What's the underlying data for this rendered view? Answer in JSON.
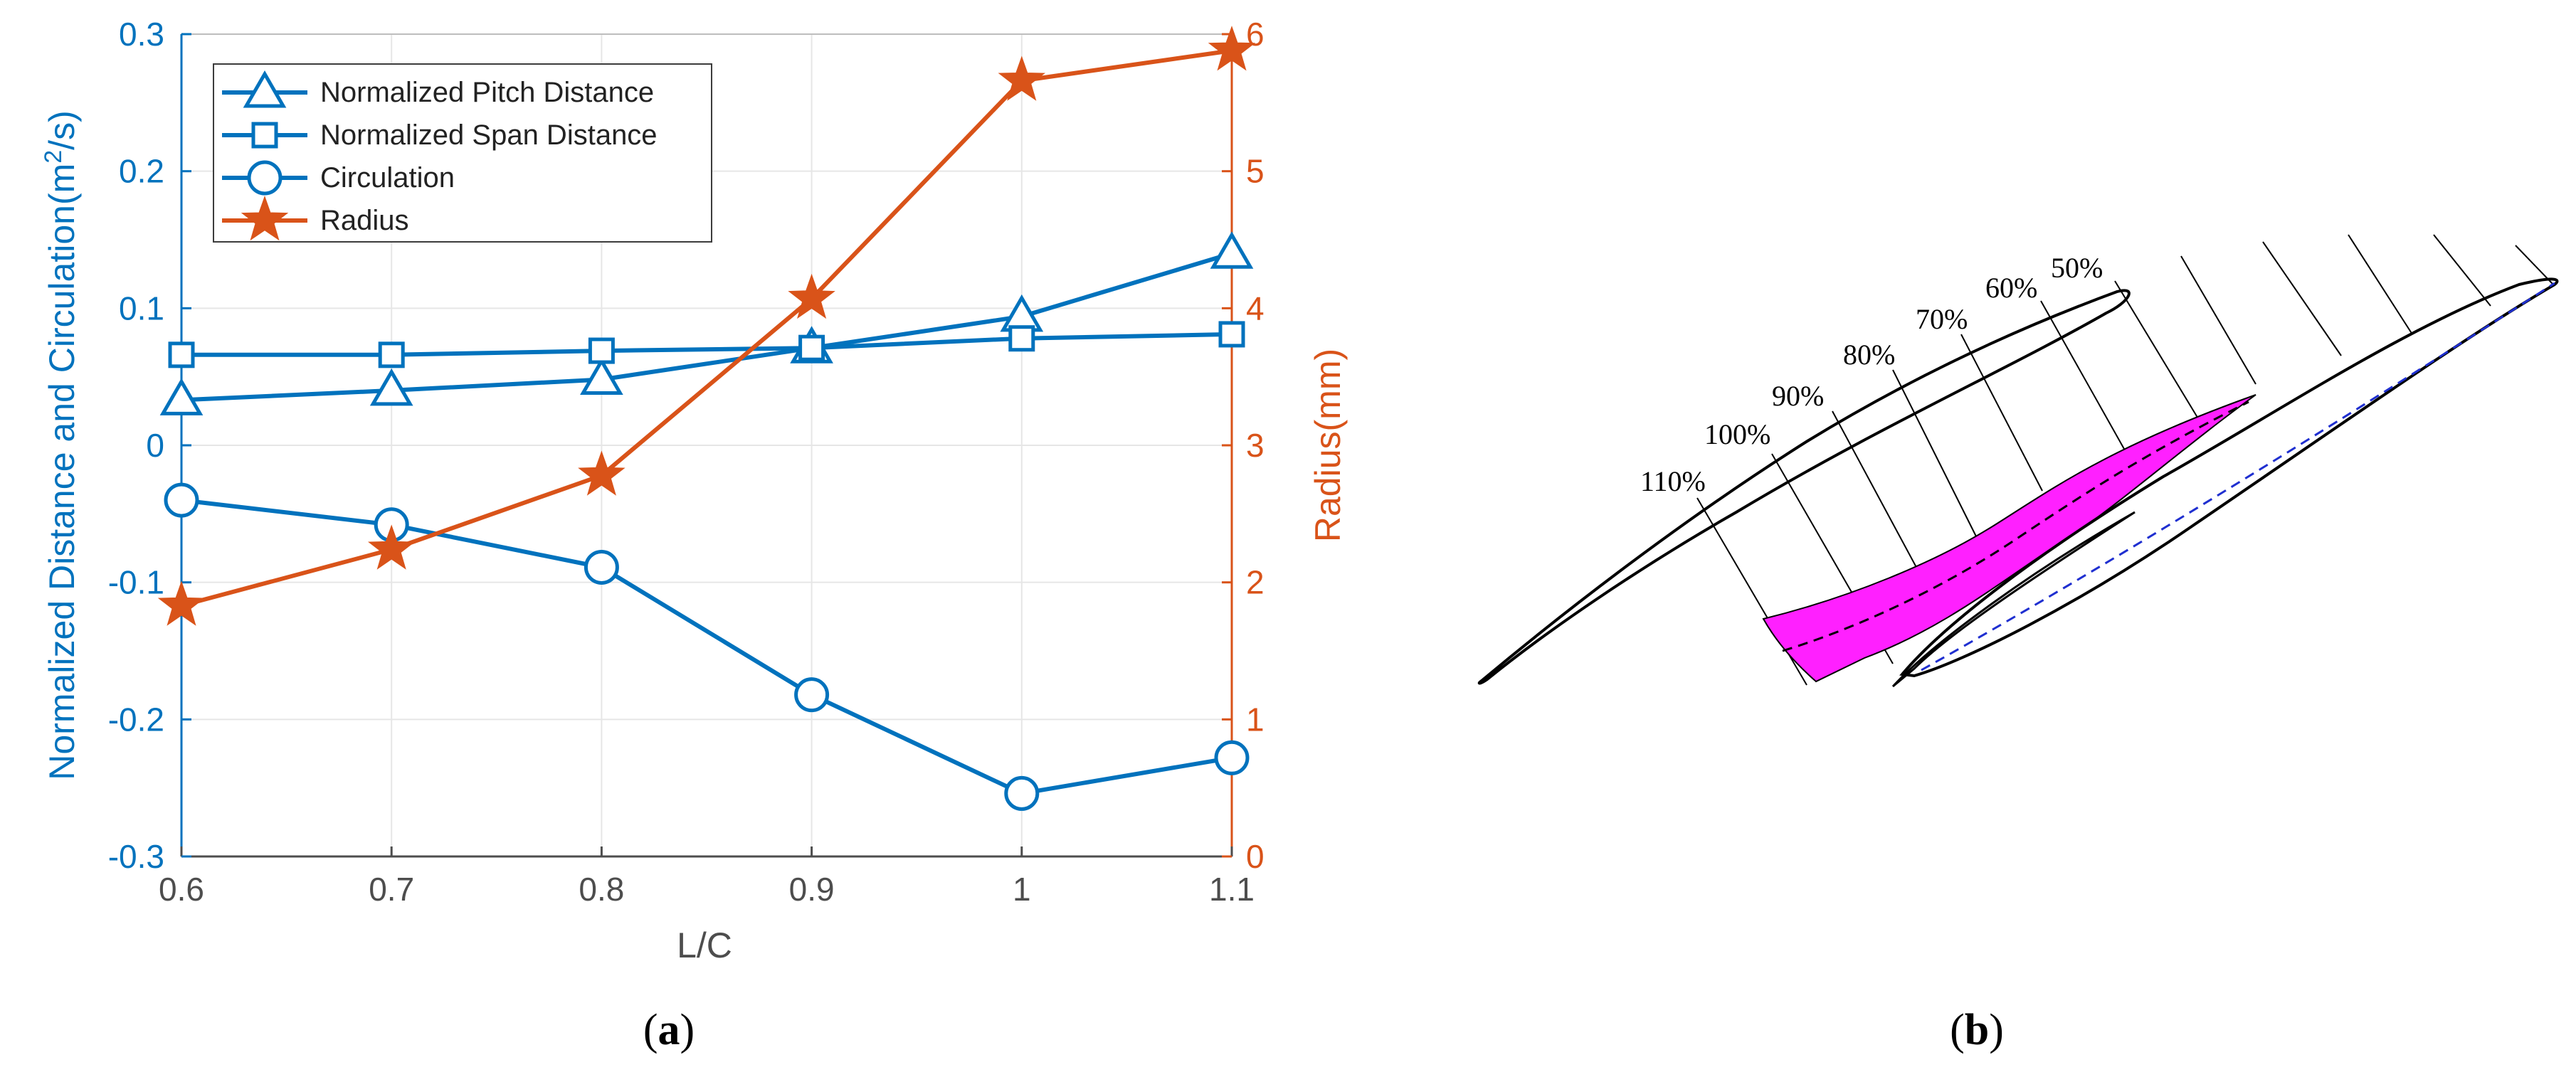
{
  "colors": {
    "left_axis": "#0072BD",
    "right_axis": "#D95319",
    "grid": "#e6e6e6",
    "vortex_fill": "#ff20ff",
    "dashed_blue": "#1f2fd0"
  },
  "chart_data": {
    "type": "line",
    "xlabel": "L/C",
    "ylabel_left": "Normalized Distance and Circulation(m²/s)",
    "ylabel_left_parts": {
      "pre": "Normalized Distance and Circulation(m",
      "sup": "2",
      "post": "/s)"
    },
    "ylabel_right": "Radius(mm)",
    "x": [
      0.6,
      0.7,
      0.8,
      0.9,
      1,
      1.1
    ],
    "x_tick_labels": [
      "0.6",
      "0.7",
      "0.8",
      "0.9",
      "1",
      "1.1"
    ],
    "ylim_left": [
      -0.3,
      0.3
    ],
    "y_left_tick_labels": [
      "-0.3",
      "-0.2",
      "-0.1",
      "0",
      "0.1",
      "0.2",
      "0.3"
    ],
    "ylim_right": [
      0,
      6
    ],
    "y_right_tick_labels": [
      "0",
      "1",
      "2",
      "3",
      "4",
      "5",
      "6"
    ],
    "grid": true,
    "legend_position": "top-left",
    "series": [
      {
        "name": "Normalized Pitch Distance",
        "axis": "left",
        "marker": "triangle",
        "values": [
          0.033,
          0.04,
          0.048,
          0.071,
          0.094,
          0.14
        ]
      },
      {
        "name": "Normalized Span Distance",
        "axis": "left",
        "marker": "square",
        "values": [
          0.066,
          0.066,
          0.069,
          0.071,
          0.078,
          0.081
        ]
      },
      {
        "name": "Circulation",
        "axis": "left",
        "marker": "circle",
        "values": [
          -0.04,
          -0.058,
          -0.089,
          -0.182,
          -0.254,
          -0.228
        ]
      },
      {
        "name": "Radius",
        "axis": "right",
        "marker": "star",
        "values": [
          1.83,
          2.24,
          2.78,
          4.07,
          5.66,
          5.88
        ]
      }
    ]
  },
  "panel_a_label": {
    "open": "(",
    "letter": "a",
    "close": ")"
  },
  "panel_b_label": {
    "open": "(",
    "letter": "b",
    "close": ")"
  },
  "panel_b": {
    "section_labels": [
      "110%",
      "100%",
      "90%",
      "80%",
      "70%",
      "60%",
      "50%"
    ]
  }
}
